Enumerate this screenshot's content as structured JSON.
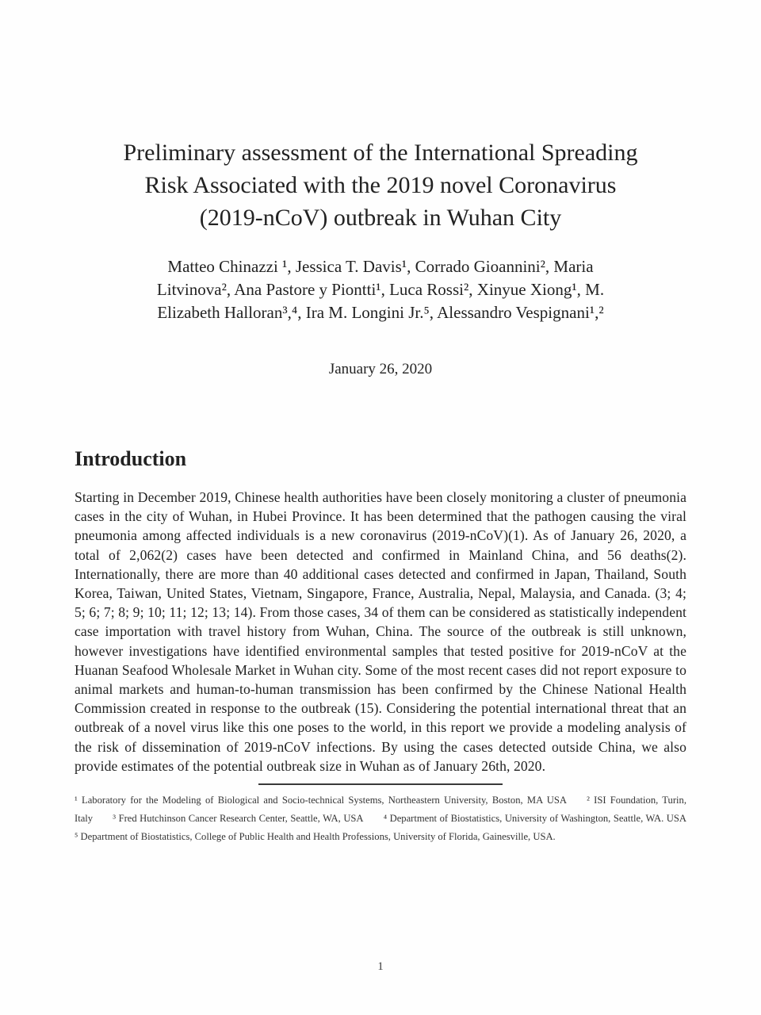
{
  "document": {
    "title_lines": [
      "Preliminary assessment of the International Spreading",
      "Risk Associated with the 2019 novel Coronavirus",
      "(2019-nCoV) outbreak in Wuhan City"
    ],
    "authors_lines": [
      "Matteo Chinazzi ¹, Jessica T. Davis¹, Corrado Gioannini², Maria",
      "Litvinova², Ana Pastore y Piontti¹, Luca Rossi², Xinyue Xiong¹, M.",
      "Elizabeth Halloran³,⁴, Ira M. Longini Jr.⁵, Alessandro Vespignani¹,²"
    ],
    "date": "January 26, 2020",
    "section_heading": "Introduction",
    "body_paragraph": "Starting in December 2019, Chinese health authorities have been closely monitoring a cluster of pneumonia cases in the city of Wuhan, in Hubei Province. It has been determined that the pathogen causing the viral pneumonia among affected individuals is a new coronavirus (2019-nCoV)(1). As of January 26, 2020, a total of 2,062(2) cases have been detected and confirmed in Mainland China, and 56 deaths(2). Internationally, there are more than 40 additional cases detected and confirmed in Japan, Thailand, South Korea, Taiwan, United States, Vietnam, Singapore, France, Australia, Nepal, Malaysia, and Canada. (3; 4; 5; 6; 7; 8; 9; 10; 11; 12; 13; 14). From those cases, 34 of them can be considered as statistically independent case importation with travel history from Wuhan, China. The source of the outbreak is still unknown, however investigations have identified environmental samples that tested positive for 2019-nCoV at the Huanan Seafood Wholesale Market in Wuhan city. Some of the most recent cases did not report exposure to animal markets and human-to-human transmission has been confirmed by the Chinese National Health Commission created in response to the outbreak (15). Considering the potential international threat that an outbreak of a novel virus like this one poses to the world, in this report we provide a modeling analysis of the risk of dissemination of 2019-nCoV infections. By using the cases detected outside China, we also provide estimates of the potential outbreak size in Wuhan as of January 26th, 2020.",
    "footnote": "¹ Laboratory for the Modeling of Biological and Socio-technical Systems, Northeastern University, Boston, MA USA  ² ISI Foundation, Turin, Italy  ³ Fred Hutchinson Cancer Research Center, Seattle, WA, USA  ⁴ Department of Biostatistics, University of Washington, Seattle, WA. USA ⁵ Department of Biostatistics, College of Public Health and Health Professions, University of Florida, Gainesville, USA.",
    "page_number": "1"
  }
}
